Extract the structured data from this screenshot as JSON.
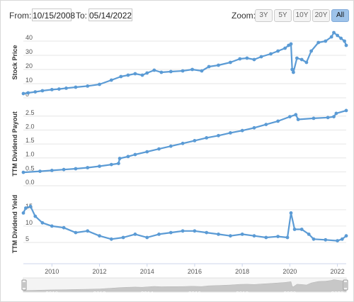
{
  "range_selector": {
    "from_label": "From:",
    "from_value": "10/15/2008",
    "to_label": "To:",
    "to_value": "05/14/2022",
    "zoom_label": "Zoom:",
    "zoom_buttons": [
      "3Y",
      "5Y",
      "10Y",
      "20Y",
      "All"
    ],
    "active_zoom": "All"
  },
  "x_axis": {
    "ticks": [
      "2010",
      "2012",
      "2014",
      "2016",
      "2018",
      "2020",
      "2022"
    ]
  },
  "navigator": {
    "labels": [
      "2010",
      "2012",
      "2014",
      "2016",
      "2018",
      "2020",
      "2022"
    ]
  },
  "colors": {
    "series": "#5b9bd5",
    "grid": "#e6e6e6",
    "navigator_fill": "#c7c7c7",
    "active_zoom": "#9ec3ea"
  },
  "chart_data": [
    {
      "type": "line",
      "ylabel": "Stock Price",
      "ylim": [
        0,
        50
      ],
      "yticks": [
        "0",
        "10",
        "20",
        "30",
        "40"
      ],
      "xlim": [
        2008.8,
        2022.37
      ],
      "points": [
        [
          2008.8,
          3
        ],
        [
          2009.0,
          3.5
        ],
        [
          2009.3,
          4.2
        ],
        [
          2009.6,
          5
        ],
        [
          2010.0,
          5.8
        ],
        [
          2010.3,
          6.2
        ],
        [
          2010.6,
          6.8
        ],
        [
          2011.0,
          7.5
        ],
        [
          2011.5,
          8.3
        ],
        [
          2012.0,
          9.5
        ],
        [
          2012.5,
          12.5
        ],
        [
          2012.9,
          15
        ],
        [
          2013.2,
          16
        ],
        [
          2013.5,
          17
        ],
        [
          2013.8,
          16
        ],
        [
          2014.0,
          17.5
        ],
        [
          2014.3,
          19.5
        ],
        [
          2014.6,
          18
        ],
        [
          2015.0,
          18.5
        ],
        [
          2015.5,
          19
        ],
        [
          2015.9,
          20
        ],
        [
          2016.3,
          19
        ],
        [
          2016.6,
          22
        ],
        [
          2017.0,
          23
        ],
        [
          2017.5,
          25
        ],
        [
          2017.9,
          27.5
        ],
        [
          2018.2,
          28
        ],
        [
          2018.5,
          27
        ],
        [
          2018.8,
          29
        ],
        [
          2019.2,
          31
        ],
        [
          2019.5,
          33
        ],
        [
          2019.8,
          35
        ],
        [
          2019.95,
          37
        ],
        [
          2020.05,
          38
        ],
        [
          2020.1,
          20
        ],
        [
          2020.15,
          18
        ],
        [
          2020.3,
          28
        ],
        [
          2020.5,
          27
        ],
        [
          2020.7,
          25
        ],
        [
          2020.9,
          33
        ],
        [
          2021.2,
          39
        ],
        [
          2021.5,
          40
        ],
        [
          2021.75,
          43
        ],
        [
          2021.85,
          46
        ],
        [
          2022.0,
          44
        ],
        [
          2022.15,
          42
        ],
        [
          2022.3,
          40
        ],
        [
          2022.37,
          37
        ]
      ]
    },
    {
      "type": "line",
      "ylabel": "TTM Dividend Payout",
      "ylim": [
        0,
        2.8
      ],
      "yticks": [
        "0.0",
        "0.5",
        "1.0",
        "1.5",
        "2.0",
        "2.5"
      ],
      "xlim": [
        2008.8,
        2022.37
      ],
      "points": [
        [
          2008.8,
          0.48
        ],
        [
          2009.5,
          0.52
        ],
        [
          2010.0,
          0.55
        ],
        [
          2010.5,
          0.58
        ],
        [
          2011.0,
          0.61
        ],
        [
          2011.5,
          0.65
        ],
        [
          2012.0,
          0.7
        ],
        [
          2012.5,
          0.76
        ],
        [
          2012.8,
          0.8
        ],
        [
          2012.85,
          0.98
        ],
        [
          2013.2,
          1.05
        ],
        [
          2013.5,
          1.12
        ],
        [
          2014.0,
          1.22
        ],
        [
          2014.5,
          1.32
        ],
        [
          2015.0,
          1.42
        ],
        [
          2015.5,
          1.52
        ],
        [
          2016.0,
          1.62
        ],
        [
          2016.5,
          1.72
        ],
        [
          2017.0,
          1.8
        ],
        [
          2017.5,
          1.9
        ],
        [
          2018.0,
          1.98
        ],
        [
          2018.5,
          2.08
        ],
        [
          2019.0,
          2.2
        ],
        [
          2019.5,
          2.32
        ],
        [
          2020.0,
          2.48
        ],
        [
          2020.25,
          2.55
        ],
        [
          2020.35,
          2.38
        ],
        [
          2021.0,
          2.42
        ],
        [
          2021.6,
          2.45
        ],
        [
          2021.85,
          2.48
        ],
        [
          2021.95,
          2.6
        ],
        [
          2022.37,
          2.7
        ]
      ]
    },
    {
      "type": "line",
      "ylabel": "TTM Dividend Yield",
      "ylim": [
        0,
        18
      ],
      "yticks": [
        "5",
        "10",
        "15"
      ],
      "xlim": [
        2008.8,
        2022.37
      ],
      "points": [
        [
          2008.8,
          14
        ],
        [
          2008.9,
          15.5
        ],
        [
          2009.1,
          16
        ],
        [
          2009.3,
          13
        ],
        [
          2009.6,
          11
        ],
        [
          2010.0,
          10
        ],
        [
          2010.5,
          9.5
        ],
        [
          2011.0,
          8
        ],
        [
          2011.5,
          8.5
        ],
        [
          2012.0,
          7
        ],
        [
          2012.5,
          6
        ],
        [
          2013.0,
          6.5
        ],
        [
          2013.5,
          7.5
        ],
        [
          2014.0,
          6.5
        ],
        [
          2014.5,
          7.5
        ],
        [
          2015.0,
          8
        ],
        [
          2015.5,
          8.5
        ],
        [
          2016.0,
          8.5
        ],
        [
          2016.5,
          8
        ],
        [
          2017.0,
          7.5
        ],
        [
          2017.5,
          7
        ],
        [
          2018.0,
          7.5
        ],
        [
          2018.5,
          7
        ],
        [
          2019.0,
          6.5
        ],
        [
          2019.5,
          6.8
        ],
        [
          2019.9,
          6.5
        ],
        [
          2020.05,
          14
        ],
        [
          2020.2,
          9
        ],
        [
          2020.5,
          9
        ],
        [
          2020.8,
          7.5
        ],
        [
          2021.0,
          6
        ],
        [
          2021.5,
          5.8
        ],
        [
          2022.0,
          5.5
        ],
        [
          2022.2,
          6
        ],
        [
          2022.37,
          7
        ]
      ]
    }
  ]
}
